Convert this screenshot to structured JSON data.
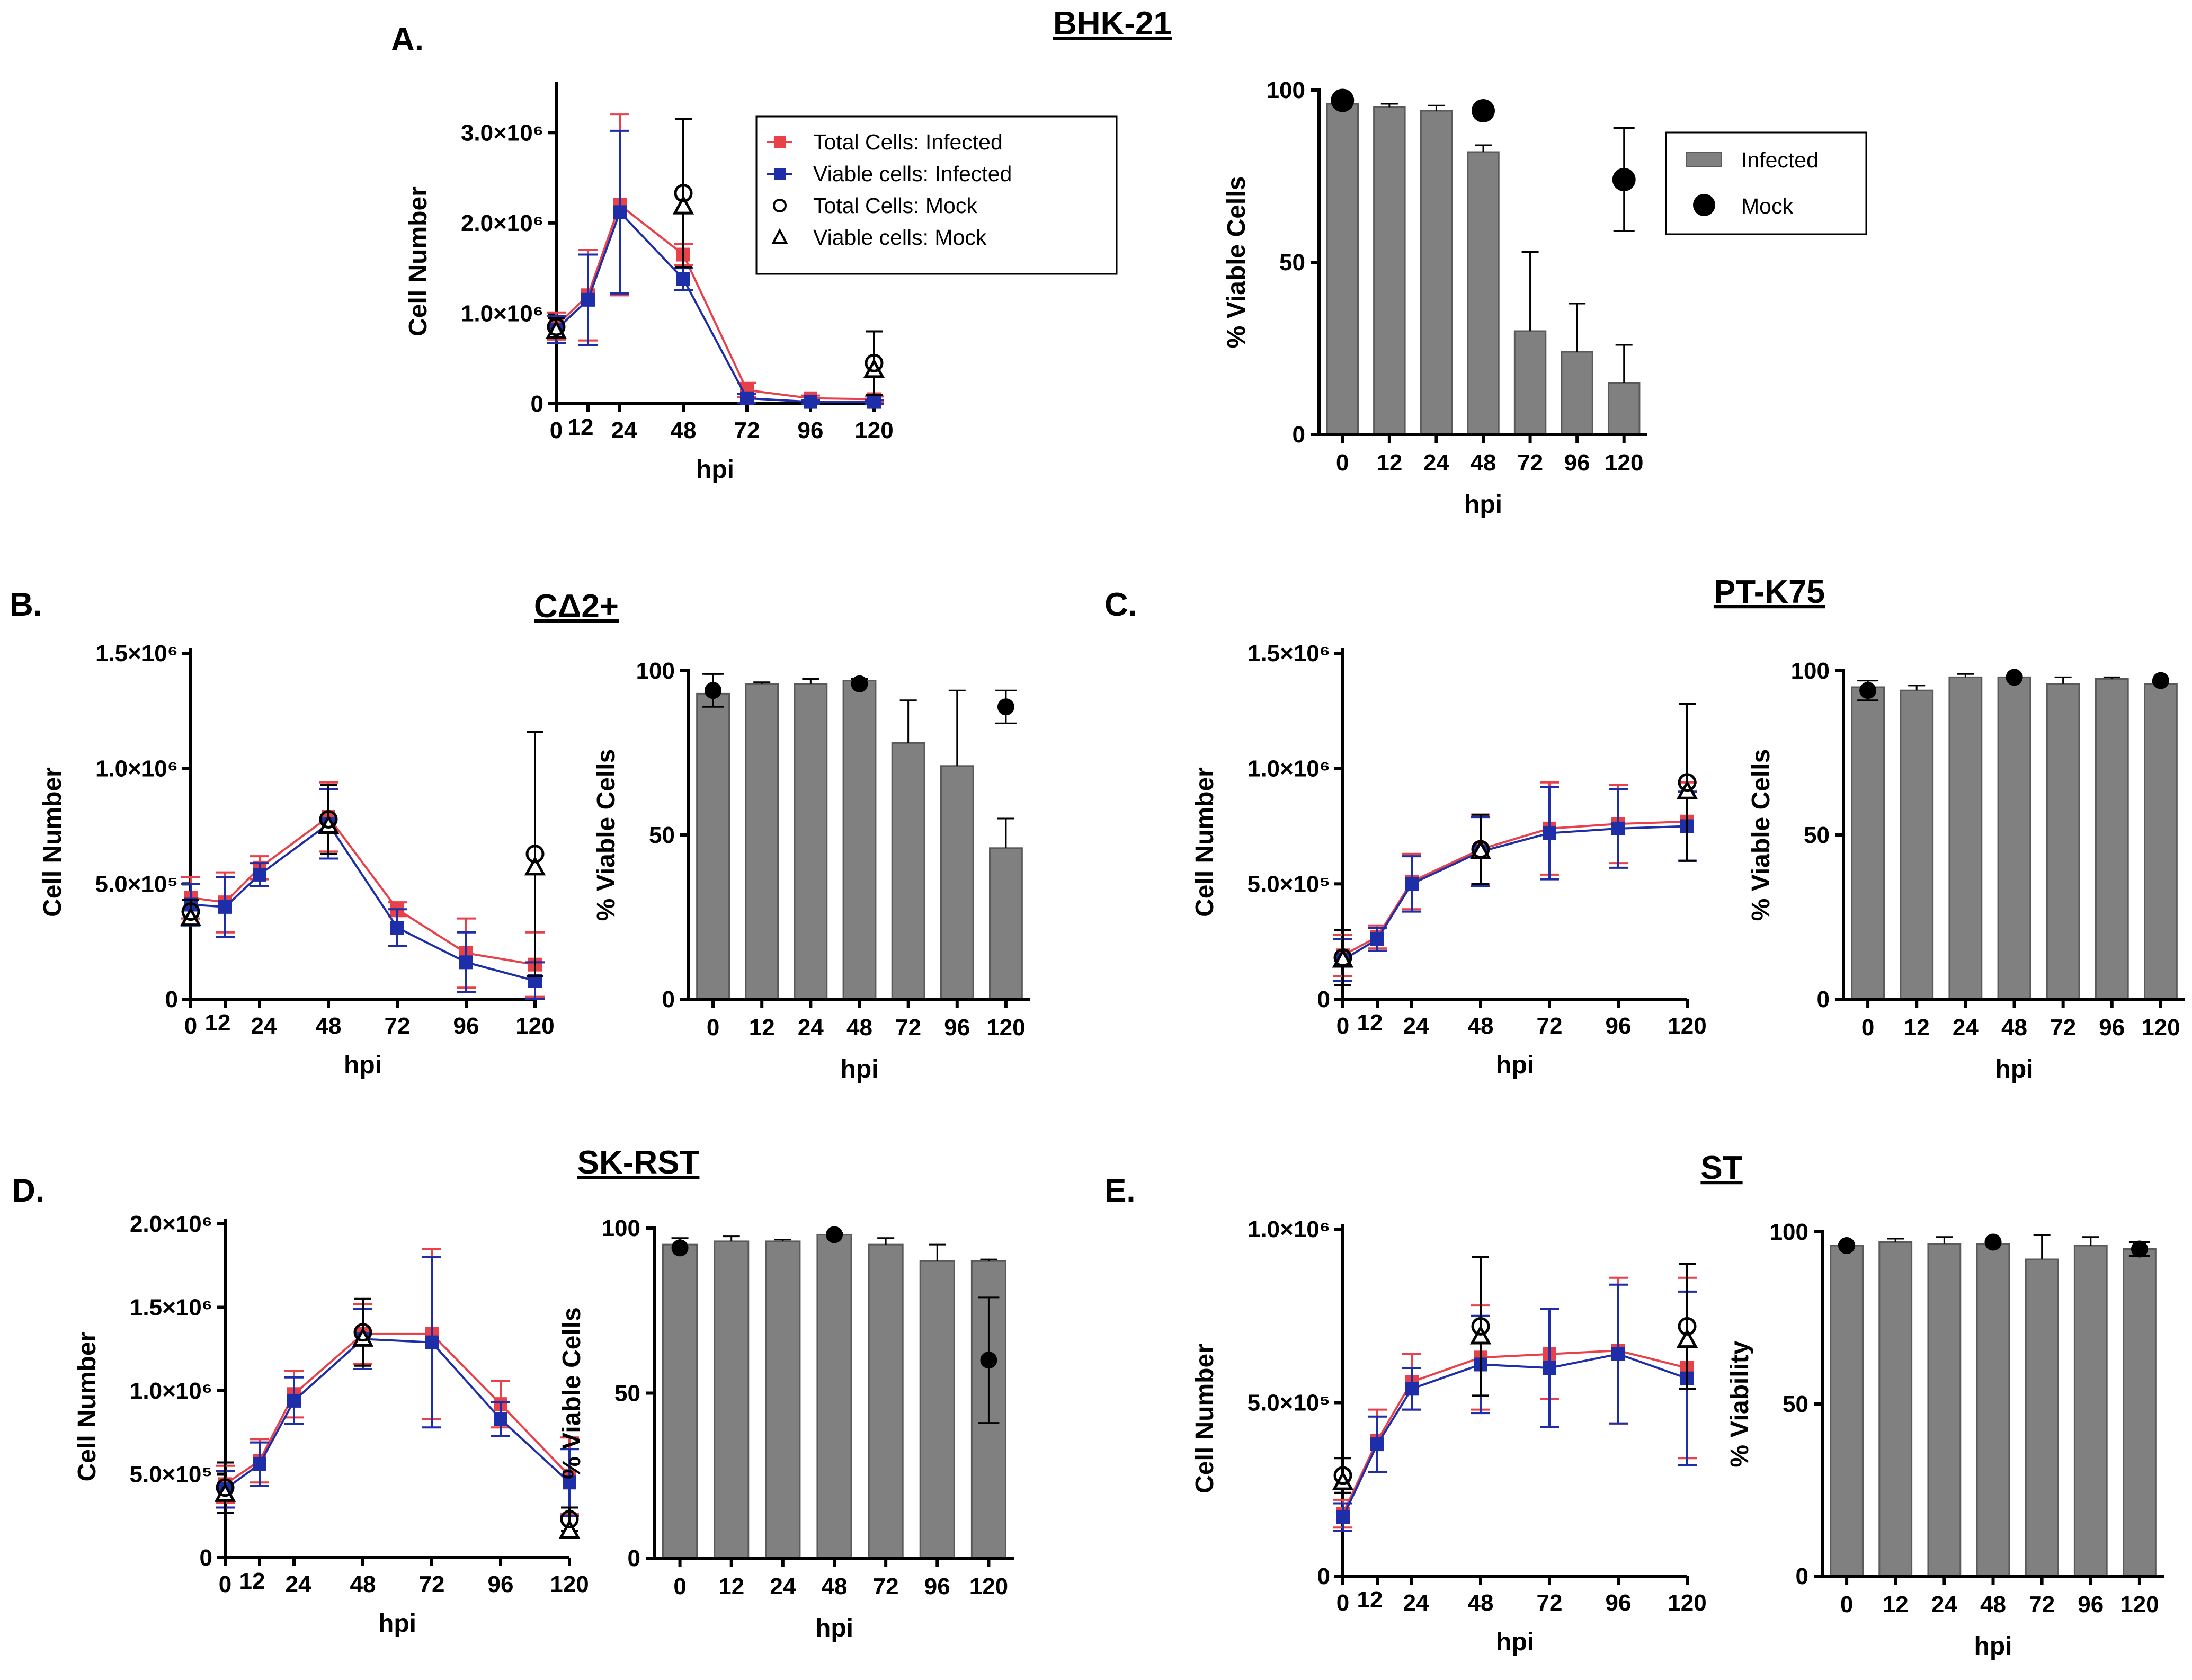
{
  "colors": {
    "infected_total": "#e8414a",
    "infected_viable": "#1d2ea8",
    "bar": "#808080",
    "mock": "#000000"
  },
  "legend_line": {
    "total_infected": "Total Cells: Infected",
    "viable_infected": "Viable cells: Infected",
    "total_mock": "Total Cells: Mock",
    "viable_mock": "Viable cells: Mock"
  },
  "legend_bar": {
    "infected": "Infected",
    "mock": "Mock"
  },
  "chart_data": [
    {
      "panel": "A.",
      "title": "BHK-21",
      "type": "line",
      "xlabel": "hpi",
      "ylabel": "Cell Number",
      "x": [
        0,
        12,
        24,
        48,
        72,
        96,
        120
      ],
      "xticks": [
        "0",
        "12",
        "24",
        "48",
        "72",
        "96",
        "120"
      ],
      "ylim": [
        0,
        3500000
      ],
      "yticks": [
        {
          "v": 0,
          "label": "0"
        },
        {
          "v": 1000000,
          "label": "1.0×10⁶"
        },
        {
          "v": 2000000,
          "label": "2.0×10⁶"
        },
        {
          "v": 3000000,
          "label": "3.0×10⁶"
        }
      ],
      "series": [
        {
          "name": "Total Cells: Infected",
          "values": [
            860000,
            1200000,
            2200000,
            1650000,
            150000,
            60000,
            50000
          ],
          "err": [
            150000,
            500000,
            1000000,
            120000,
            80000,
            30000,
            30000
          ]
        },
        {
          "name": "Viable cells: Infected",
          "values": [
            820000,
            1150000,
            2120000,
            1380000,
            60000,
            20000,
            20000
          ],
          "err": [
            150000,
            500000,
            900000,
            120000,
            50000,
            20000,
            20000
          ]
        }
      ],
      "mock_total": {
        "x": [
          0,
          48,
          120
        ],
        "values": [
          850000,
          2330000,
          450000
        ],
        "err": [
          100000,
          820000,
          350000
        ]
      },
      "mock_viable": {
        "x": [
          0,
          48,
          120
        ],
        "values": [
          800000,
          2180000,
          370000
        ],
        "err": [
          100000,
          700000,
          300000
        ]
      }
    },
    {
      "panel": "",
      "title": "",
      "type": "bar",
      "xlabel": "hpi",
      "ylabel": "% Viable Cells",
      "categories": [
        "0",
        "12",
        "24",
        "48",
        "72",
        "96",
        "120"
      ],
      "ylim": [
        0,
        100
      ],
      "yticks": [
        0,
        50,
        100
      ],
      "values": [
        96,
        95,
        94,
        82,
        30,
        24,
        15
      ],
      "err": [
        1,
        1,
        1.5,
        2,
        23,
        14,
        11
      ],
      "mock": {
        "categories": [
          "0",
          "48",
          "120"
        ],
        "values": [
          97,
          94,
          74
        ],
        "err": [
          0,
          0,
          15
        ]
      }
    },
    {
      "panel": "B.",
      "title": "CΔ2+",
      "type": "line",
      "xlabel": "hpi",
      "ylabel": "Cell Number",
      "x": [
        0,
        12,
        24,
        48,
        72,
        96,
        120
      ],
      "xticks": [
        "0",
        "12",
        "24",
        "48",
        "72",
        "96",
        "120"
      ],
      "ylim": [
        0,
        1500000
      ],
      "yticks": [
        {
          "v": 0,
          "label": "0"
        },
        {
          "v": 500000,
          "label": "5.0×10⁵"
        },
        {
          "v": 1000000,
          "label": "1.0×10⁶"
        },
        {
          "v": 1500000,
          "label": "1.5×10⁶"
        }
      ],
      "series": [
        {
          "name": "Total Cells: Infected",
          "values": [
            440000,
            420000,
            570000,
            790000,
            390000,
            200000,
            150000
          ],
          "err": [
            90000,
            130000,
            50000,
            150000,
            30000,
            150000,
            140000
          ]
        },
        {
          "name": "Viable cells: Infected",
          "values": [
            410000,
            400000,
            540000,
            760000,
            310000,
            160000,
            80000
          ],
          "err": [
            90000,
            130000,
            50000,
            150000,
            80000,
            130000,
            80000
          ]
        }
      ],
      "mock_total": {
        "x": [
          0,
          48,
          120
        ],
        "values": [
          380000,
          780000,
          630000
        ],
        "err": [
          50000,
          150000,
          530000
        ]
      },
      "mock_viable": {
        "x": [
          0,
          48,
          120
        ],
        "values": [
          350000,
          750000,
          570000
        ],
        "err": [
          50000,
          130000,
          300000
        ]
      }
    },
    {
      "panel": "",
      "title": "",
      "type": "bar",
      "xlabel": "hpi",
      "ylabel": "% Viable Cells",
      "categories": [
        "0",
        "12",
        "24",
        "48",
        "72",
        "96",
        "120"
      ],
      "ylim": [
        0,
        100
      ],
      "yticks": [
        0,
        50,
        100
      ],
      "values": [
        93,
        96,
        96,
        97,
        78,
        71,
        46
      ],
      "err": [
        6,
        0.5,
        1.5,
        0.5,
        13,
        23,
        9
      ],
      "mock": {
        "categories": [
          "0",
          "48",
          "120"
        ],
        "values": [
          94,
          96,
          89
        ],
        "err": [
          5,
          0,
          5
        ]
      }
    },
    {
      "panel": "C.",
      "title": "PT-K75",
      "type": "line",
      "xlabel": "hpi",
      "ylabel": "Cell Number",
      "x": [
        0,
        12,
        24,
        48,
        72,
        96,
        120
      ],
      "xticks": [
        "0",
        "12",
        "24",
        "48",
        "72",
        "96",
        "120"
      ],
      "ylim": [
        0,
        1500000
      ],
      "yticks": [
        {
          "v": 0,
          "label": "0"
        },
        {
          "v": 500000,
          "label": "5.0×10⁵"
        },
        {
          "v": 1000000,
          "label": "1.0×10⁶"
        },
        {
          "v": 1500000,
          "label": "1.5×10⁶"
        }
      ],
      "series": [
        {
          "name": "Total Cells: Infected",
          "values": [
            190000,
            270000,
            510000,
            650000,
            740000,
            760000,
            770000
          ],
          "err": [
            90000,
            50000,
            120000,
            150000,
            200000,
            170000,
            170000
          ]
        },
        {
          "name": "Viable cells: Infected",
          "values": [
            170000,
            260000,
            500000,
            640000,
            720000,
            740000,
            750000
          ],
          "err": [
            90000,
            50000,
            120000,
            150000,
            200000,
            170000,
            150000
          ]
        }
      ],
      "mock_total": {
        "x": [
          0,
          48,
          120
        ],
        "values": [
          180000,
          650000,
          940000
        ],
        "err": [
          120000,
          150000,
          340000
        ]
      },
      "mock_viable": {
        "x": [
          0,
          48,
          120
        ],
        "values": [
          170000,
          640000,
          900000
        ],
        "err": [
          100000,
          140000,
          300000
        ]
      }
    },
    {
      "panel": "",
      "title": "",
      "type": "bar",
      "xlabel": "hpi",
      "ylabel": "% Viable Cells",
      "categories": [
        "0",
        "12",
        "24",
        "48",
        "72",
        "96",
        "120"
      ],
      "ylim": [
        0,
        100
      ],
      "yticks": [
        0,
        50,
        100
      ],
      "values": [
        95,
        94,
        98,
        98,
        96,
        97.5,
        96
      ],
      "err": [
        2,
        1.5,
        1,
        0.5,
        2,
        0.5,
        0.5
      ],
      "mock": {
        "categories": [
          "0",
          "48",
          "120"
        ],
        "values": [
          94,
          98,
          97
        ],
        "err": [
          3,
          0,
          0
        ]
      }
    },
    {
      "panel": "D.",
      "title": "SK-RST",
      "type": "line",
      "xlabel": "hpi",
      "ylabel": "Cell Number",
      "x": [
        0,
        12,
        24,
        48,
        72,
        96,
        120
      ],
      "xticks": [
        "0",
        "12",
        "24",
        "48",
        "72",
        "96",
        "120"
      ],
      "ylim": [
        0,
        2000000
      ],
      "yticks": [
        {
          "v": 0,
          "label": "0"
        },
        {
          "v": 500000,
          "label": "5.0×10⁵"
        },
        {
          "v": 1000000,
          "label": "1.0×10⁶"
        },
        {
          "v": 1500000,
          "label": "1.5×10⁶"
        },
        {
          "v": 2000000,
          "label": "2.0×10⁶"
        }
      ],
      "series": [
        {
          "name": "Total Cells: Infected",
          "values": [
            440000,
            580000,
            980000,
            1340000,
            1340000,
            920000,
            490000
          ],
          "err": [
            110000,
            130000,
            140000,
            180000,
            510000,
            140000,
            230000
          ]
        },
        {
          "name": "Viable cells: Infected",
          "values": [
            410000,
            560000,
            940000,
            1310000,
            1290000,
            830000,
            450000
          ],
          "err": [
            110000,
            130000,
            140000,
            180000,
            510000,
            100000,
            200000
          ]
        }
      ],
      "mock_total": {
        "x": [
          0,
          48,
          120
        ],
        "values": [
          420000,
          1350000,
          230000
        ],
        "err": [
          150000,
          200000,
          70000
        ]
      },
      "mock_viable": {
        "x": [
          0,
          48,
          120
        ],
        "values": [
          380000,
          1310000,
          160000
        ],
        "err": [
          100000,
          170000,
          60000
        ]
      }
    },
    {
      "panel": "",
      "title": "",
      "type": "bar",
      "xlabel": "hpi",
      "ylabel": "% Viable Cells",
      "categories": [
        "0",
        "12",
        "24",
        "48",
        "72",
        "96",
        "120"
      ],
      "ylim": [
        0,
        100
      ],
      "yticks": [
        0,
        50,
        100
      ],
      "values": [
        95,
        96,
        96,
        98,
        95,
        90,
        90
      ],
      "err": [
        2,
        1.5,
        0.5,
        0.5,
        2,
        5,
        0.5
      ],
      "mock": {
        "categories": [
          "0",
          "48",
          "120"
        ],
        "values": [
          94,
          98,
          60
        ],
        "err": [
          0,
          0,
          19
        ]
      }
    },
    {
      "panel": "E.",
      "title": "ST",
      "type": "line",
      "xlabel": "hpi",
      "ylabel": "Cell Number",
      "x": [
        0,
        12,
        24,
        48,
        72,
        96,
        120
      ],
      "xticks": [
        "0",
        "12",
        "24",
        "48",
        "72",
        "96",
        "120"
      ],
      "ylim": [
        0,
        1000000
      ],
      "yticks": [
        {
          "v": 0,
          "label": "0"
        },
        {
          "v": 500000,
          "label": "5.0×10⁵"
        },
        {
          "v": 1000000,
          "label": "1.0×10⁶"
        }
      ],
      "series": [
        {
          "name": "Total Cells: Infected",
          "values": [
            180000,
            390000,
            560000,
            630000,
            640000,
            650000,
            600000
          ],
          "err": [
            40000,
            90000,
            80000,
            150000,
            130000,
            210000,
            260000
          ]
        },
        {
          "name": "Viable cells: Infected",
          "values": [
            170000,
            380000,
            540000,
            610000,
            600000,
            640000,
            570000
          ],
          "err": [
            40000,
            80000,
            60000,
            140000,
            170000,
            200000,
            250000
          ]
        }
      ],
      "mock_total": {
        "x": [
          0,
          48,
          120
        ],
        "values": [
          290000,
          720000,
          720000
        ],
        "err": [
          50000,
          200000,
          180000
        ]
      },
      "mock_viable": {
        "x": [
          0,
          48,
          120
        ],
        "values": [
          270000,
          690000,
          680000
        ],
        "err": [
          40000,
          170000,
          150000
        ]
      }
    },
    {
      "panel": "",
      "title": "",
      "type": "bar",
      "xlabel": "hpi",
      "ylabel": "% Viability",
      "categories": [
        "0",
        "12",
        "24",
        "48",
        "72",
        "96",
        "120"
      ],
      "ylim": [
        0,
        100
      ],
      "yticks": [
        0,
        50,
        100
      ],
      "values": [
        96,
        97,
        96.5,
        96.5,
        92,
        96,
        95
      ],
      "err": [
        0.5,
        1,
        2,
        0.5,
        7,
        2.5,
        2
      ],
      "mock": {
        "categories": [
          "0",
          "48",
          "120"
        ],
        "values": [
          96,
          97,
          95
        ],
        "err": [
          0,
          0,
          2
        ]
      }
    }
  ]
}
